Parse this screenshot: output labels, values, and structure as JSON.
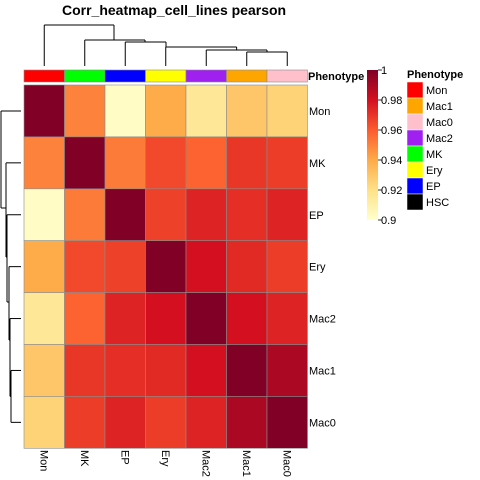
{
  "chart_data": {
    "type": "heatmap",
    "title": "Corr_heatmap_cell_lines pearson",
    "row_labels": [
      "Mon",
      "MK",
      "EP",
      "Ery",
      "Mac2",
      "Mac1",
      "Mac0"
    ],
    "col_labels": [
      "Mon",
      "MK",
      "EP",
      "Ery",
      "Mac2",
      "Mac1",
      "Mac0"
    ],
    "values": [
      [
        1.0,
        0.95,
        0.902,
        0.94,
        0.915,
        0.93,
        0.925
      ],
      [
        0.95,
        1.0,
        0.952,
        0.965,
        0.958,
        0.97,
        0.968
      ],
      [
        0.902,
        0.952,
        1.0,
        0.967,
        0.975,
        0.972,
        0.975
      ],
      [
        0.94,
        0.965,
        0.967,
        1.0,
        0.98,
        0.973,
        0.968
      ],
      [
        0.915,
        0.958,
        0.975,
        0.98,
        1.0,
        0.98,
        0.975
      ],
      [
        0.93,
        0.97,
        0.972,
        0.973,
        0.98,
        1.0,
        0.99
      ],
      [
        0.925,
        0.968,
        0.975,
        0.968,
        0.975,
        0.99,
        1.0
      ]
    ],
    "annotation": {
      "name": "Phenotype",
      "column_groups": [
        "Mon",
        "MK",
        "EP",
        "Ery",
        "Mac2",
        "Mac1",
        "Mac0"
      ]
    },
    "colorbar": {
      "range": [
        0.9,
        1.0
      ],
      "ticks": [
        "1",
        "0.98",
        "0.96",
        "0.94",
        "0.92",
        "0.9"
      ],
      "tick_values": [
        1.0,
        0.98,
        0.96,
        0.94,
        0.92,
        0.9
      ],
      "stops": [
        "#FFFFCC",
        "#FEE187",
        "#FEAB49",
        "#FC5B2E",
        "#D41020",
        "#800026"
      ]
    },
    "legend": {
      "title": "Phenotype",
      "entries": [
        "Mon",
        "Mac1",
        "Mac0",
        "Mac2",
        "MK",
        "Ery",
        "EP",
        "HSC"
      ]
    },
    "phenotype_colors": {
      "Mon": "#FF0000",
      "Mac1": "#FFA500",
      "Mac0": "#FFC0CB",
      "Mac2": "#A020F0",
      "MK": "#00FF00",
      "Ery": "#FFFF00",
      "EP": "#0000FF",
      "HSC": "#000000"
    }
  }
}
